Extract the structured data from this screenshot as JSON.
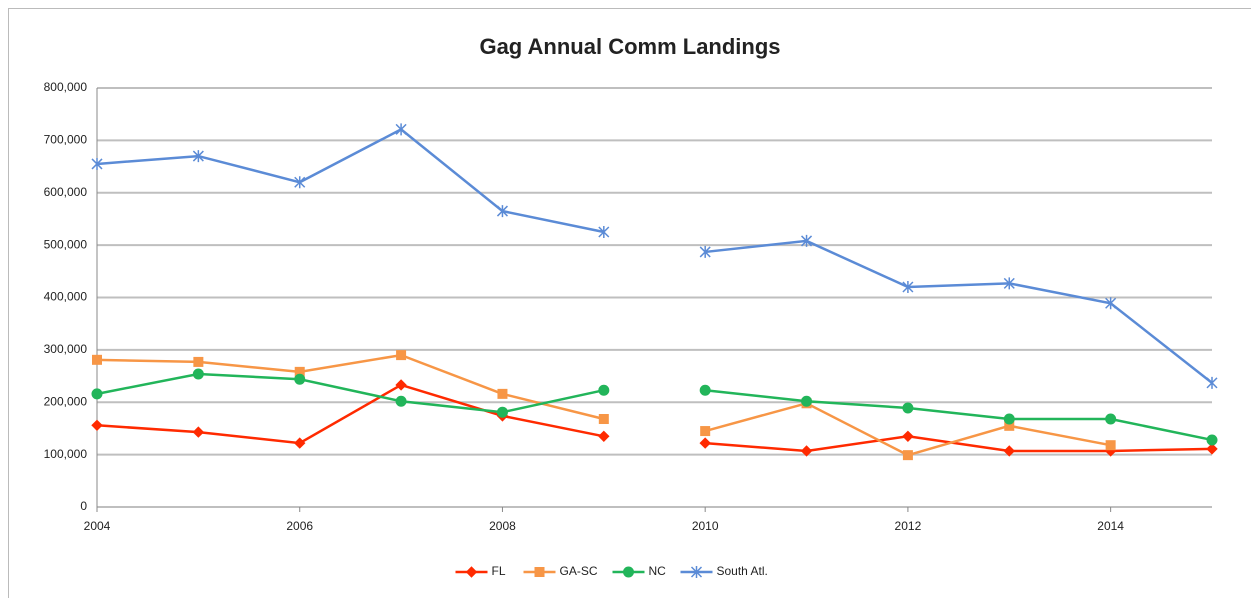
{
  "chart_data": {
    "type": "line",
    "title": "Gag Annual Comm Landings",
    "x": [
      2004,
      2005,
      2006,
      2007,
      2008,
      2009,
      null,
      2010,
      2011,
      2012,
      2013,
      2014,
      2015
    ],
    "xlim": [
      2004,
      2015
    ],
    "xticks": [
      2004,
      2006,
      2008,
      2010,
      2012,
      2014
    ],
    "ylim": [
      0,
      800000
    ],
    "yticks": [
      0,
      {
        "value": 100000,
        "label": "100,000"
      },
      {
        "value": 200000,
        "label": "200,000"
      },
      {
        "value": 300000,
        "label": "300,000"
      },
      {
        "value": 400000,
        "label": "400,000"
      },
      {
        "value": 500000,
        "label": "500,000"
      },
      {
        "value": 600000,
        "label": "600,000"
      },
      {
        "value": 700000,
        "label": "700,000"
      },
      {
        "value": 800000,
        "label": "800,000"
      }
    ],
    "grid": true,
    "legend": "bottom",
    "series": [
      {
        "name": "FL",
        "color": "#ff2a00",
        "marker": "diamond",
        "values": [
          156000,
          143000,
          122000,
          233000,
          174000,
          135000,
          null,
          122000,
          107000,
          135000,
          107000,
          107000,
          111000
        ]
      },
      {
        "name": "GA-SC",
        "color": "#f79646",
        "marker": "square",
        "values": [
          281000,
          277000,
          258000,
          290000,
          216000,
          168000,
          null,
          145000,
          198000,
          99000,
          155000,
          118000,
          null
        ]
      },
      {
        "name": "NC",
        "color": "#22b55a",
        "marker": "circle",
        "values": [
          216000,
          254000,
          244000,
          202000,
          181000,
          223000,
          null,
          223000,
          202000,
          189000,
          168000,
          168000,
          128000
        ]
      },
      {
        "name": "South Atl.",
        "color": "#5b8bd6",
        "marker": "star",
        "values": [
          655000,
          670000,
          620000,
          721000,
          565000,
          525000,
          null,
          487000,
          508000,
          420000,
          427000,
          389000,
          237000
        ]
      }
    ]
  }
}
